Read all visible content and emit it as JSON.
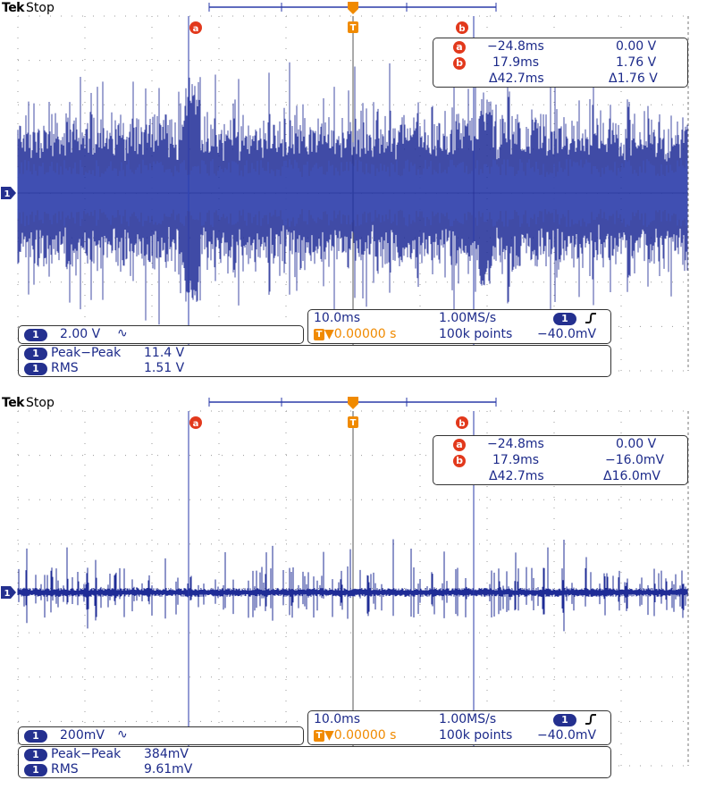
{
  "brand": "Tek",
  "status": "Stop",
  "icons": {
    "trigger_marker": "trigger-T-icon",
    "cursor_a": "cursor-a-icon",
    "cursor_b": "cursor-b-icon",
    "ch_marker": "channel-1-marker-icon",
    "edge": "rising-edge-icon",
    "coupling": "ac-coupling-icon"
  },
  "colors": {
    "trace": "#1f2c96",
    "accent": "#f08a00",
    "cursor_badge": "#e2391c",
    "grid": "#888888"
  },
  "top": {
    "cursor_a_label": "a",
    "cursor_b_label": "b",
    "trigger_label": "T",
    "readout": {
      "a_time": "−24.8ms",
      "a_volt": "0.00 V",
      "b_time": "17.9ms",
      "b_volt": "1.76 V",
      "delta_time": "Δ42.7ms",
      "delta_volt": "Δ1.76 V"
    },
    "channel": {
      "num": "1",
      "scale": "2.00 V",
      "coupling": "∿"
    },
    "timebase": {
      "scale": "10.0ms",
      "rate": "1.00MS/s",
      "trig_pos": "▼0.00000 s",
      "points": "100k points",
      "trig_ch": "1",
      "trig_level": "−40.0mV"
    },
    "measures": [
      {
        "ch": "1",
        "name": "Peak−Peak",
        "value": "11.4 V"
      },
      {
        "ch": "1",
        "name": "RMS",
        "value": "1.51 V"
      }
    ]
  },
  "bottom": {
    "cursor_a_label": "a",
    "cursor_b_label": "b",
    "trigger_label": "T",
    "readout": {
      "a_time": "−24.8ms",
      "a_volt": "0.00 V",
      "b_time": "17.9ms",
      "b_volt": "−16.0mV",
      "delta_time": "Δ42.7ms",
      "delta_volt": "Δ16.0mV"
    },
    "channel": {
      "num": "1",
      "scale": "200mV",
      "coupling": "∿"
    },
    "timebase": {
      "scale": "10.0ms",
      "rate": "1.00MS/s",
      "trig_pos": "▼0.00000 s",
      "points": "100k points",
      "trig_ch": "1",
      "trig_level": "−40.0mV"
    },
    "measures": [
      {
        "ch": "1",
        "name": "Peak−Peak",
        "value": "384mV"
      },
      {
        "ch": "1",
        "name": "RMS",
        "value": "9.61mV"
      }
    ]
  }
}
